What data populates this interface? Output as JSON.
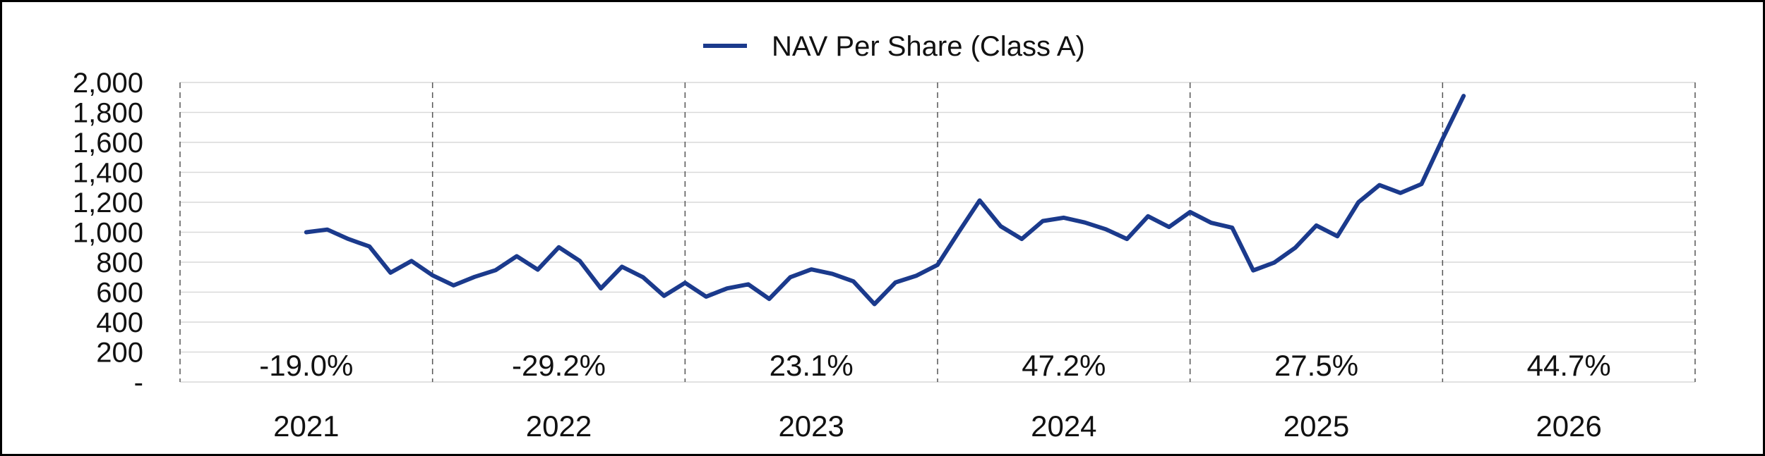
{
  "chart_data": {
    "type": "line",
    "title": "",
    "xlabel": "",
    "ylabel": "",
    "ylim": [
      0,
      2000
    ],
    "y_ticks": [
      {
        "value": 0,
        "label": "-"
      },
      {
        "value": 200,
        "label": "200"
      },
      {
        "value": 400,
        "label": "400"
      },
      {
        "value": 600,
        "label": "600"
      },
      {
        "value": 800,
        "label": "800"
      },
      {
        "value": 1000,
        "label": "1,000"
      },
      {
        "value": 1200,
        "label": "1,200"
      },
      {
        "value": 1400,
        "label": "1,400"
      },
      {
        "value": 1600,
        "label": "1,600"
      },
      {
        "value": 1800,
        "label": "1,800"
      },
      {
        "value": 2000,
        "label": "2,000"
      }
    ],
    "grid": true,
    "legend": {
      "position": "top-center"
    },
    "years": [
      {
        "label": "2021",
        "return": "-19.0%"
      },
      {
        "label": "2022",
        "return": "-29.2%"
      },
      {
        "label": "2023",
        "return": "23.1%"
      },
      {
        "label": "2024",
        "return": "47.2%"
      },
      {
        "label": "2025",
        "return": "27.5%"
      },
      {
        "label": "2026",
        "return": "44.7%"
      }
    ],
    "series": [
      {
        "name": "NAV Per Share (Class A)",
        "color": "#1b3a8c",
        "x_unit": "months since Jan 2021",
        "points": [
          [
            6,
            1000
          ],
          [
            7,
            1018
          ],
          [
            8,
            955
          ],
          [
            9,
            905
          ],
          [
            10,
            730
          ],
          [
            11,
            808
          ],
          [
            12,
            712
          ],
          [
            13,
            645
          ],
          [
            14,
            702
          ],
          [
            15,
            747
          ],
          [
            16,
            840
          ],
          [
            17,
            750
          ],
          [
            18,
            900
          ],
          [
            19,
            808
          ],
          [
            20,
            625
          ],
          [
            21,
            770
          ],
          [
            22,
            700
          ],
          [
            23,
            575
          ],
          [
            24,
            662
          ],
          [
            25,
            570
          ],
          [
            26,
            625
          ],
          [
            27,
            652
          ],
          [
            28,
            555
          ],
          [
            29,
            700
          ],
          [
            30,
            752
          ],
          [
            31,
            722
          ],
          [
            32,
            672
          ],
          [
            33,
            520
          ],
          [
            34,
            665
          ],
          [
            35,
            710
          ],
          [
            36,
            782
          ],
          [
            37,
            1000
          ],
          [
            38,
            1212
          ],
          [
            39,
            1040
          ],
          [
            40,
            955
          ],
          [
            41,
            1075
          ],
          [
            42,
            1097
          ],
          [
            43,
            1065
          ],
          [
            44,
            1020
          ],
          [
            45,
            955
          ],
          [
            46,
            1107
          ],
          [
            47,
            1035
          ],
          [
            48,
            1135
          ],
          [
            49,
            1063
          ],
          [
            50,
            1030
          ],
          [
            51,
            745
          ],
          [
            52,
            797
          ],
          [
            53,
            897
          ],
          [
            54,
            1045
          ],
          [
            55,
            973
          ],
          [
            56,
            1200
          ],
          [
            57,
            1315
          ],
          [
            58,
            1262
          ],
          [
            59,
            1322
          ],
          [
            60,
            1623
          ],
          [
            61,
            1910
          ]
        ]
      }
    ]
  }
}
